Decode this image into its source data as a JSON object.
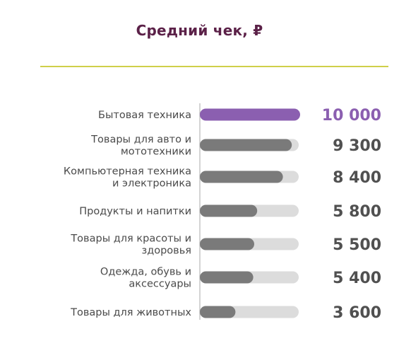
{
  "chart_data": {
    "type": "bar",
    "orientation": "horizontal",
    "title": "Средний чек, ₽",
    "categories": [
      [
        "Бытовая техника"
      ],
      [
        "Товары для авто и",
        "мототехники"
      ],
      [
        "Компьютерная техника",
        "и электроника"
      ],
      [
        "Продукты и напитки"
      ],
      [
        "Товары для красоты и",
        "здоровья"
      ],
      [
        "Одежда, обувь и",
        "аксессуары"
      ],
      [
        "Товары для животных"
      ]
    ],
    "values": [
      10000,
      9300,
      8400,
      5800,
      5500,
      5400,
      3600
    ],
    "value_labels": [
      "10 000",
      "9 300",
      "8 400",
      "5 800",
      "5 500",
      "5 400",
      "3 600"
    ],
    "xlim": [
      0,
      10000
    ],
    "highlight_index": 0,
    "grid": false,
    "legend": "none"
  },
  "colors": {
    "title": "#5b2148",
    "rule": "#cfcf4a",
    "highlight_bar": "#8b5fb0",
    "highlight_value": "#8b5fb0",
    "bar": "#7a7a7a",
    "track": "#dcdcdc",
    "value": "#505050",
    "axis": "#aaaaaa",
    "label": "#4a4a4a"
  }
}
